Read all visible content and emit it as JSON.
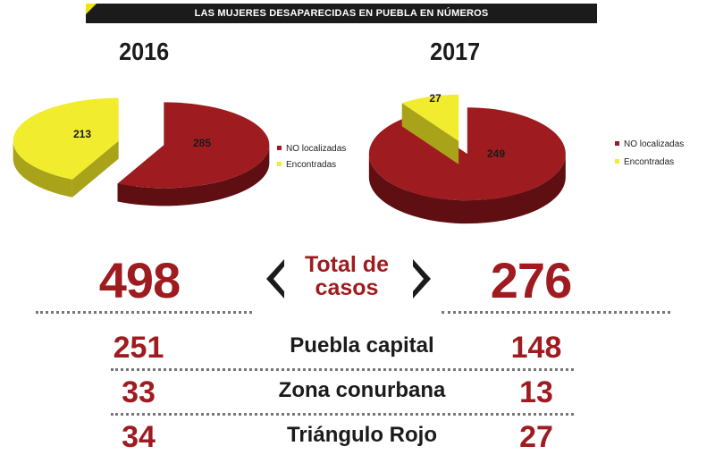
{
  "header": {
    "title": "LAS MUJERES DESAPARECIDAS EN PUEBLA EN NÚMEROS"
  },
  "colors": {
    "red": "#9e1b1f",
    "red_side": "#5f0f12",
    "yellow": "#f2ec2e",
    "yellow_side": "#a9a31a",
    "dark": "#1b1b1b"
  },
  "chart_data": [
    {
      "type": "pie",
      "title": "2016",
      "categories": [
        "NO localizadas",
        "Encontradas"
      ],
      "values": [
        285,
        213
      ],
      "legend": "right"
    },
    {
      "type": "pie",
      "title": "2017",
      "categories": [
        "NO localizadas",
        "Encontradas"
      ],
      "values": [
        249,
        27
      ],
      "legend": "right"
    }
  ],
  "totals": {
    "label_line1": "Total de",
    "label_line2": "casos",
    "y2016": "498",
    "y2017": "276"
  },
  "rows": [
    {
      "label": "Puebla capital",
      "v2016": "251",
      "v2017": "148"
    },
    {
      "label": "Zona conurbana",
      "v2016": "33",
      "v2017": "13"
    },
    {
      "label": "Triángulo Rojo",
      "v2016": "34",
      "v2017": "27"
    }
  ]
}
